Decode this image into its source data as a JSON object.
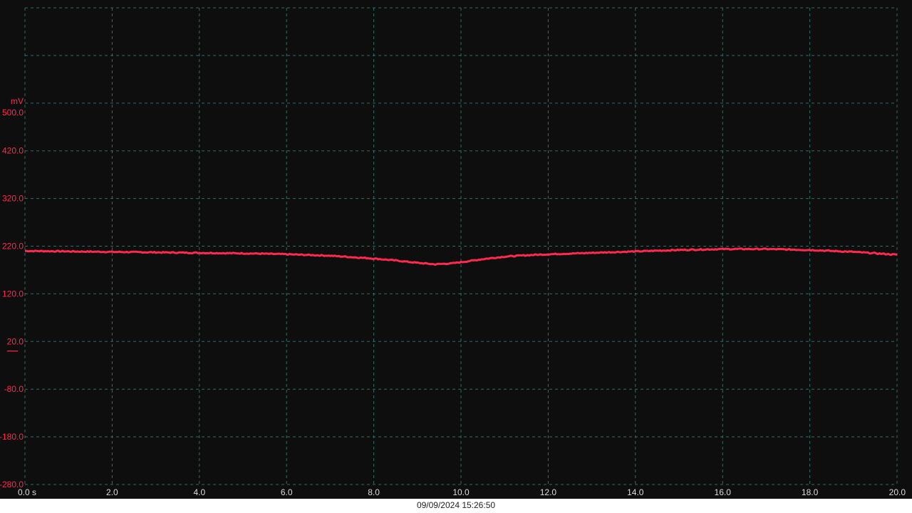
{
  "chart_data": {
    "type": "line",
    "y_unit": "mV",
    "x_unit": "s",
    "xlim": [
      0,
      20
    ],
    "ylim": [
      -280,
      600
    ],
    "x_ticks": [
      "0.0 s",
      "2.0",
      "4.0",
      "6.0",
      "8.0",
      "10.0",
      "12.0",
      "14.0",
      "16.0",
      "18.0",
      "20.0"
    ],
    "y_ticks": [
      {
        "value": 500,
        "label": "500.0"
      },
      {
        "value": 420,
        "label": "420.0"
      },
      {
        "value": 320,
        "label": "320.0"
      },
      {
        "value": 220,
        "label": "220.0"
      },
      {
        "value": 120,
        "label": "120.0"
      },
      {
        "value": 20,
        "label": "20.0"
      },
      {
        "value": -80,
        "label": "-80.0"
      },
      {
        "value": -180,
        "label": "-180.0"
      },
      {
        "value": -280,
        "label": "-280.0"
      }
    ],
    "grid": true,
    "ground_marker_value": 0,
    "series": [
      {
        "color": "#ff2a4d",
        "x": [
          0,
          1,
          2,
          3,
          4,
          5,
          6,
          7,
          7.5,
          8,
          8.5,
          9,
          9.4,
          9.8,
          10.2,
          10.6,
          11,
          11.5,
          12,
          13,
          14,
          15,
          16,
          17,
          18,
          19,
          20
        ],
        "y": [
          210,
          209,
          208,
          207,
          206,
          205,
          203,
          200,
          197,
          194,
          190,
          185,
          182,
          184,
          189,
          194,
          198,
          201,
          203,
          206,
          209,
          212,
          214,
          214,
          212,
          208,
          202
        ]
      }
    ]
  },
  "footer": {
    "timestamp": "09/09/2024 15:26:50"
  },
  "colors": {
    "background": "#0e0e0e",
    "grid": "#2f6f6a",
    "trace": "#ff2a4d",
    "x_tick_text": "#dcdcdc",
    "y_tick_text": "#ff2a4d"
  }
}
